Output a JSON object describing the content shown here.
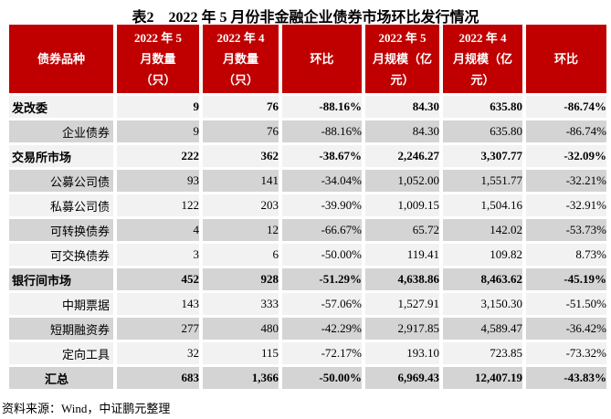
{
  "title": "表2　2022 年 5 月份非金融企业债券市场环比发行情况",
  "colors": {
    "header_bg": "#C00000",
    "header_text": "#FFFFFF",
    "row_light": "#F2F2F2",
    "row_dark": "#D4D4D4",
    "body_text": "#000000"
  },
  "table": {
    "headers": [
      "债券品种",
      "2022 年 5\n月数量\n（只）",
      "2022 年 4\n月数量\n（只）",
      "环比",
      "2022 年 5\n月规模（亿\n元）",
      "2022 年 4\n月规模（亿\n元）",
      "环比"
    ],
    "rows": [
      {
        "label": "发改委",
        "type": "category",
        "values": [
          "9",
          "76",
          "-88.16%",
          "84.30",
          "635.80",
          "-86.74%"
        ]
      },
      {
        "label": "企业债券",
        "type": "sub",
        "values": [
          "9",
          "76",
          "-88.16%",
          "84.30",
          "635.80",
          "-86.74%"
        ]
      },
      {
        "label": "交易所市场",
        "type": "category",
        "values": [
          "222",
          "362",
          "-38.67%",
          "2,246.27",
          "3,307.77",
          "-32.09%"
        ]
      },
      {
        "label": "公募公司债",
        "type": "sub",
        "values": [
          "93",
          "141",
          "-34.04%",
          "1,052.00",
          "1,551.77",
          "-32.21%"
        ]
      },
      {
        "label": "私募公司债",
        "type": "sub",
        "values": [
          "122",
          "203",
          "-39.90%",
          "1,009.15",
          "1,504.16",
          "-32.91%"
        ]
      },
      {
        "label": "可转换债券",
        "type": "sub",
        "values": [
          "4",
          "12",
          "-66.67%",
          "65.72",
          "142.02",
          "-53.73%"
        ]
      },
      {
        "label": "可交换债券",
        "type": "sub",
        "values": [
          "3",
          "6",
          "-50.00%",
          "119.41",
          "109.82",
          "8.73%"
        ]
      },
      {
        "label": "银行间市场",
        "type": "category",
        "values": [
          "452",
          "928",
          "-51.29%",
          "4,638.86",
          "8,463.62",
          "-45.19%"
        ]
      },
      {
        "label": "中期票据",
        "type": "sub",
        "values": [
          "143",
          "333",
          "-57.06%",
          "1,527.91",
          "3,150.30",
          "-51.50%"
        ]
      },
      {
        "label": "短期融资券",
        "type": "sub",
        "values": [
          "277",
          "480",
          "-42.29%",
          "2,917.85",
          "4,589.47",
          "-36.42%"
        ]
      },
      {
        "label": "定向工具",
        "type": "sub",
        "values": [
          "32",
          "115",
          "-72.17%",
          "193.10",
          "723.85",
          "-73.32%"
        ]
      },
      {
        "label": "汇总",
        "type": "total",
        "values": [
          "683",
          "1,366",
          "-50.00%",
          "6,969.43",
          "12,407.19",
          "-43.83%"
        ]
      }
    ]
  },
  "footer": {
    "source": "资料来源：Wind，中证鹏元整理"
  }
}
